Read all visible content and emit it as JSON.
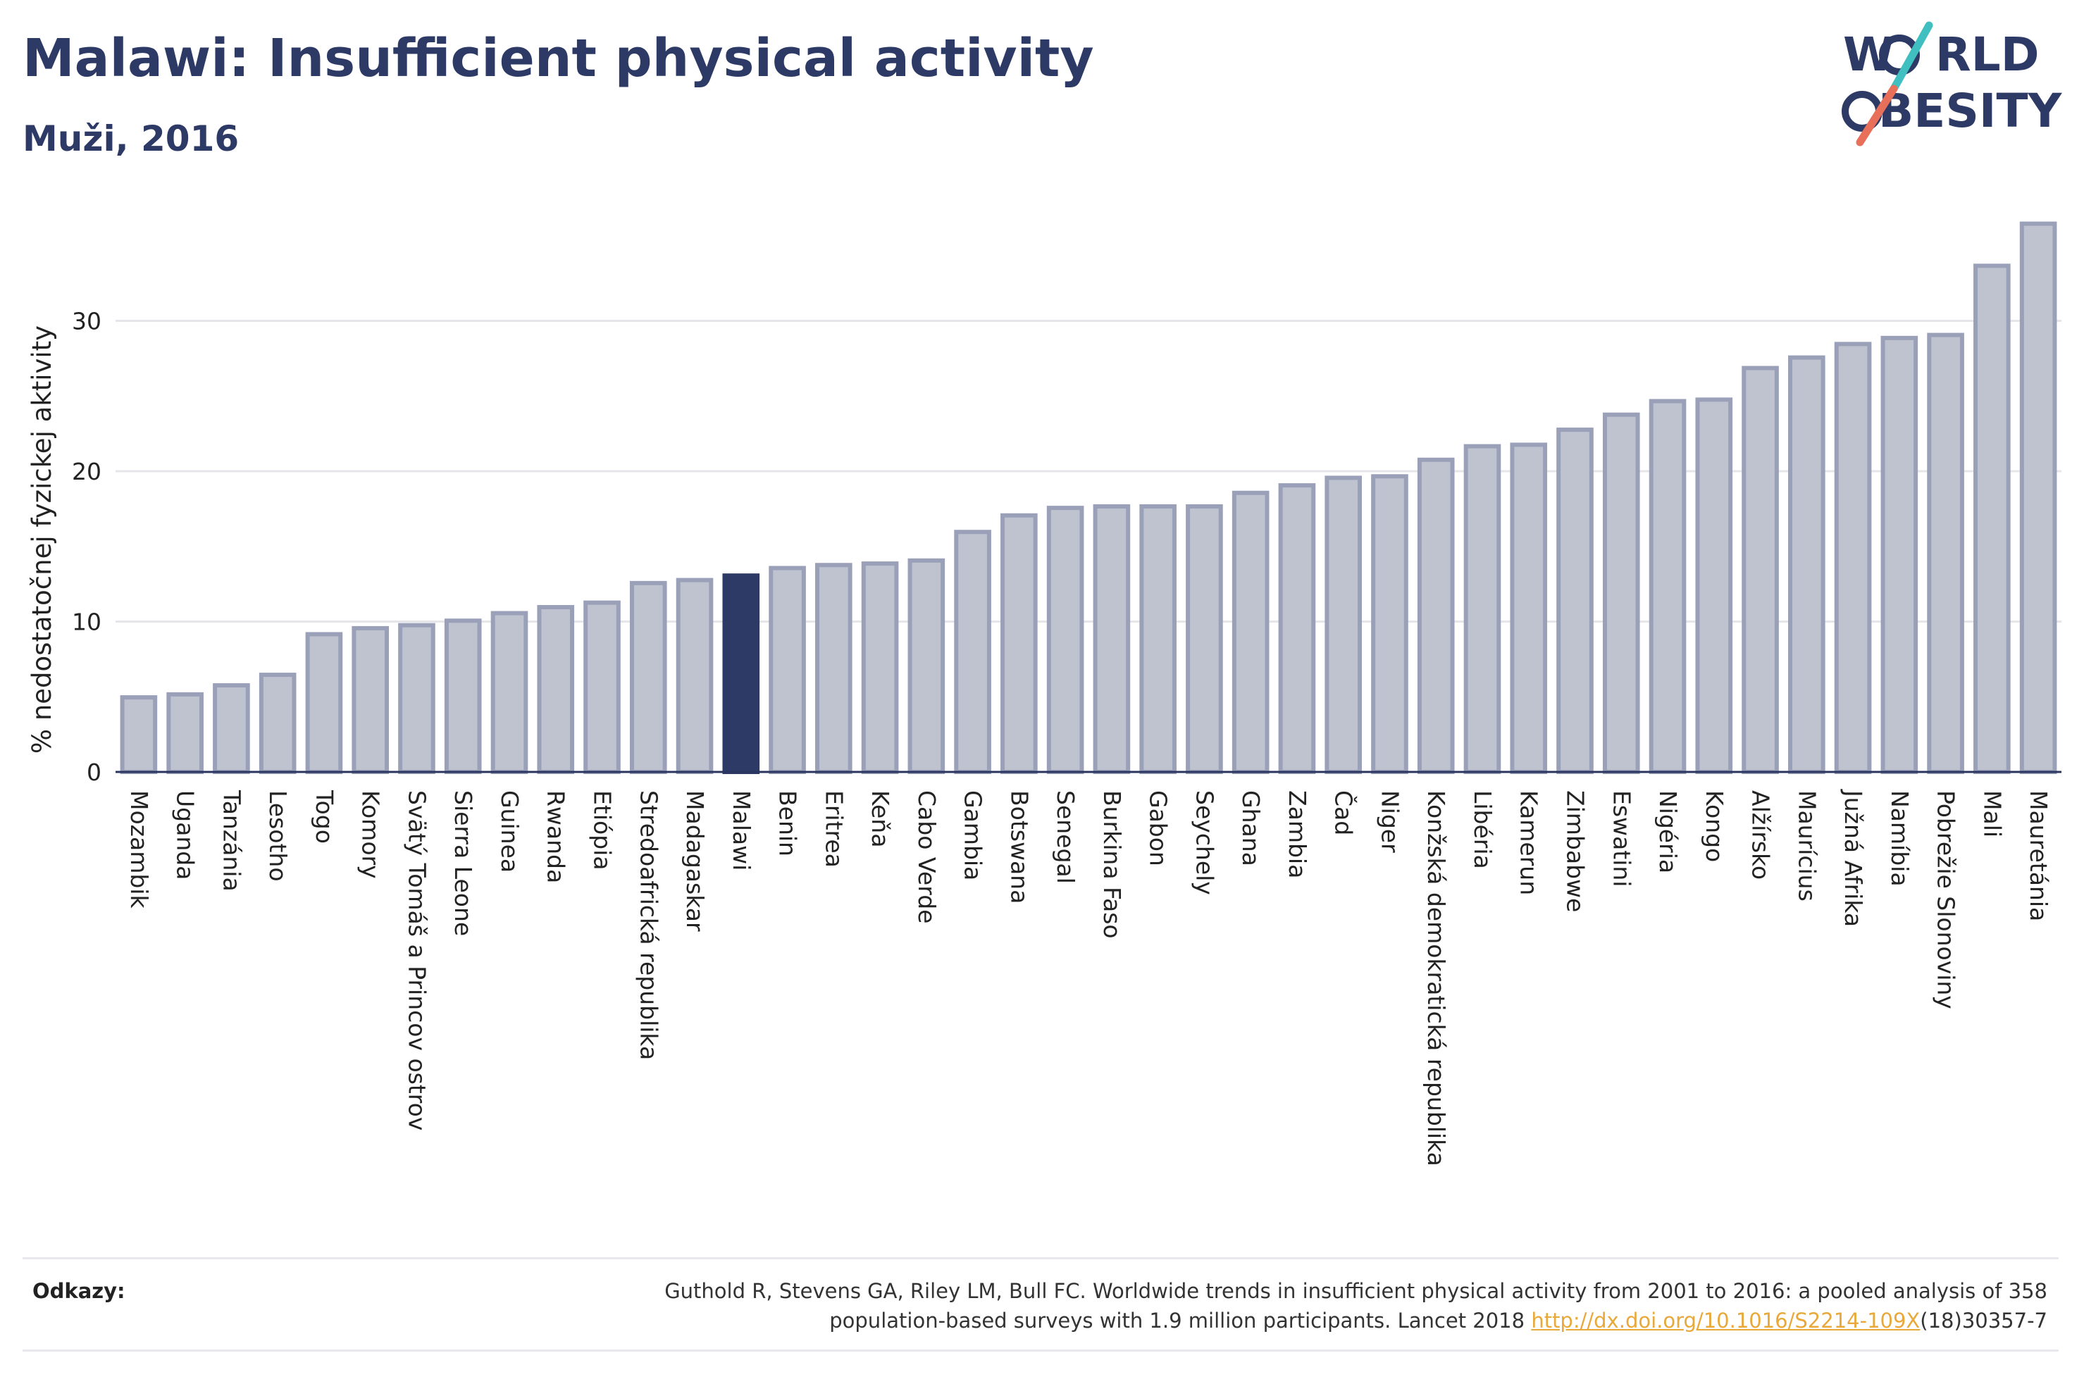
{
  "header": {
    "title": "Malawi: Insufficient physical activity",
    "subtitle": "Muži, 2016"
  },
  "logo": {
    "line1": "W",
    "line1_rest": "RLD",
    "line2": "BESITY",
    "slash_colors": [
      "#3fbfbf",
      "#e8705a"
    ],
    "text_color": "#2d3a66"
  },
  "footer": {
    "refs_label": "Odkazy:",
    "citation_line1": "Guthold R, Stevens GA, Riley LM, Bull FC. Worldwide trends in insufficient physical activity from 2001 to 2016: a pooled analysis of 358",
    "citation_line2_prefix": "population-based surveys with 1.9 million participants. Lancet 2018 ",
    "citation_link": "http://dx.doi.org/10.1016/S2214-109X",
    "citation_suffix": "(18)30357-7"
  },
  "chart_data": {
    "type": "bar",
    "title": "Malawi: Insufficient physical activity",
    "subtitle": "Muži, 2016",
    "ylabel": "% nedostatočnej fyzickej aktivity",
    "xlabel": "",
    "ylim": [
      0,
      38
    ],
    "yticks": [
      0,
      10,
      20,
      30
    ],
    "grid": true,
    "highlight": "Malawi",
    "colors": {
      "bar": "#bfc3d0",
      "bar_stroke": "#9aa0b8",
      "highlight": "#2d3a66",
      "grid": "#e6e6ea",
      "axis": "#2a3560"
    },
    "categories": [
      "Mozambik",
      "Uganda",
      "Tanzánia",
      "Lesotho",
      "Togo",
      "Komory",
      "Svätý Tomáš a Princov ostrov",
      "Sierra Leone",
      "Guinea",
      "Rwanda",
      "Etiópia",
      "Stredoafrická republika",
      "Madagaskar",
      "Malawi",
      "Benin",
      "Eritrea",
      "Keňa",
      "Cabo Verde",
      "Gambia",
      "Botswana",
      "Senegal",
      "Burkina Faso",
      "Gabon",
      "Seychely",
      "Ghana",
      "Zambia",
      "Čad",
      "Niger",
      "Konžská demokratická republika",
      "Libéria",
      "Kamerun",
      "Zimbabwe",
      "Eswatini",
      "Nigéria",
      "Kongo",
      "Alžírsko",
      "Maurícius",
      "Južná Afrika",
      "Namíbia",
      "Pobrežie Slonoviny",
      "Mali",
      "Mauretánia"
    ],
    "values": [
      5.1,
      5.3,
      5.9,
      6.6,
      9.3,
      9.7,
      9.9,
      10.2,
      10.7,
      11.1,
      11.4,
      12.7,
      12.9,
      13.2,
      13.7,
      13.9,
      14.0,
      14.2,
      16.1,
      17.2,
      17.7,
      17.8,
      17.8,
      17.8,
      18.7,
      19.2,
      19.7,
      19.8,
      20.9,
      21.8,
      21.9,
      22.9,
      23.9,
      24.8,
      24.9,
      27.0,
      27.7,
      28.6,
      29.0,
      29.2,
      33.8,
      36.6
    ]
  }
}
